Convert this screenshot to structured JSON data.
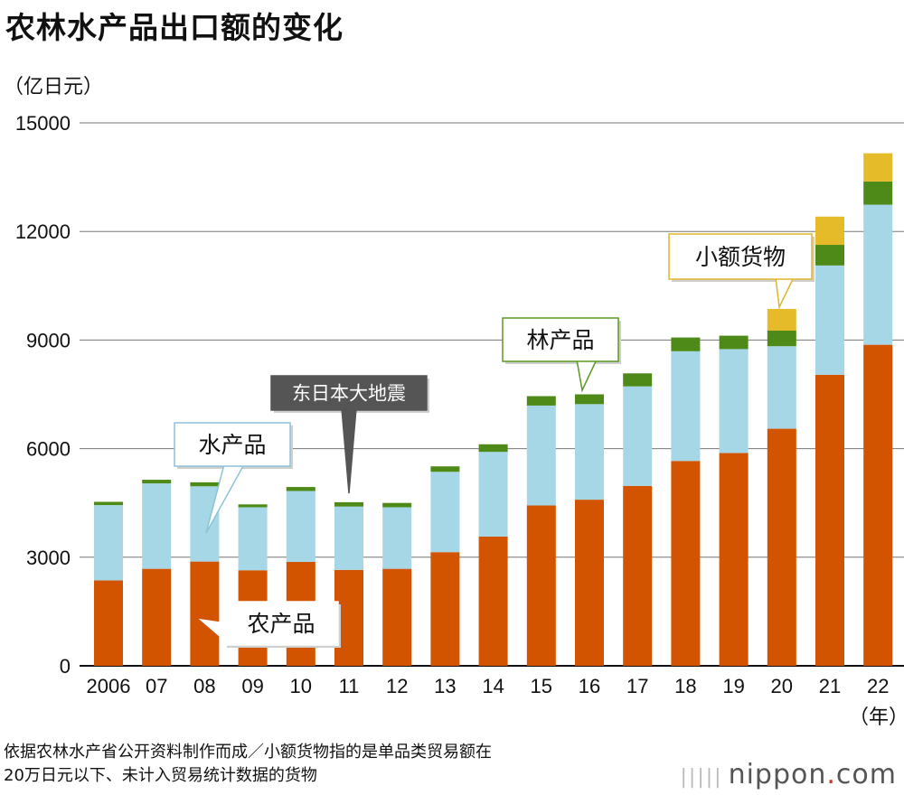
{
  "chart_data": {
    "type": "bar",
    "stacked": true,
    "title": "农林水产品出口额的变化",
    "unit": "（亿日元）",
    "xunit": "（年）",
    "categories": [
      "2006",
      "07",
      "08",
      "09",
      "10",
      "11",
      "12",
      "13",
      "14",
      "15",
      "16",
      "17",
      "18",
      "19",
      "20",
      "21",
      "22"
    ],
    "ylim": [
      0,
      15000
    ],
    "yticks": [
      0,
      3000,
      6000,
      9000,
      12000,
      15000
    ],
    "grid": true,
    "series": [
      {
        "name": "农产品",
        "color": "#d35400",
        "values": [
          2360,
          2680,
          2880,
          2640,
          2870,
          2650,
          2680,
          3140,
          3570,
          4430,
          4590,
          4970,
          5660,
          5880,
          6550,
          8040,
          8870
        ]
      },
      {
        "name": "水产品",
        "color": "#a5d7e6",
        "values": [
          2080,
          2360,
          2080,
          1740,
          1960,
          1750,
          1700,
          2220,
          2340,
          2760,
          2640,
          2750,
          3030,
          2870,
          2280,
          3020,
          3870
        ]
      },
      {
        "name": "林产品",
        "color": "#4e8a17",
        "values": [
          90,
          100,
          110,
          80,
          110,
          120,
          120,
          150,
          210,
          260,
          270,
          360,
          380,
          370,
          430,
          570,
          640
        ]
      },
      {
        "name": "小额货物",
        "color": "#e6bb2a",
        "values": [
          0,
          0,
          0,
          0,
          0,
          0,
          0,
          0,
          0,
          0,
          0,
          0,
          0,
          0,
          600,
          780,
          780
        ]
      }
    ],
    "annotations": {
      "earthquake": "东日本大地震",
      "fishery": "水产品",
      "forestry": "林产品",
      "small_parcel": "小额货物",
      "agri": "农产品"
    }
  },
  "footnote": {
    "line1": "依据农林水产省公开资料制作而成／小额货物指的是单品类贸易额在",
    "line2": "20万日元以下、未计入贸易统计数据的货物"
  },
  "logo": {
    "mark": "|||||",
    "name": "nippon",
    "dot": ".",
    "suffix": "com"
  }
}
